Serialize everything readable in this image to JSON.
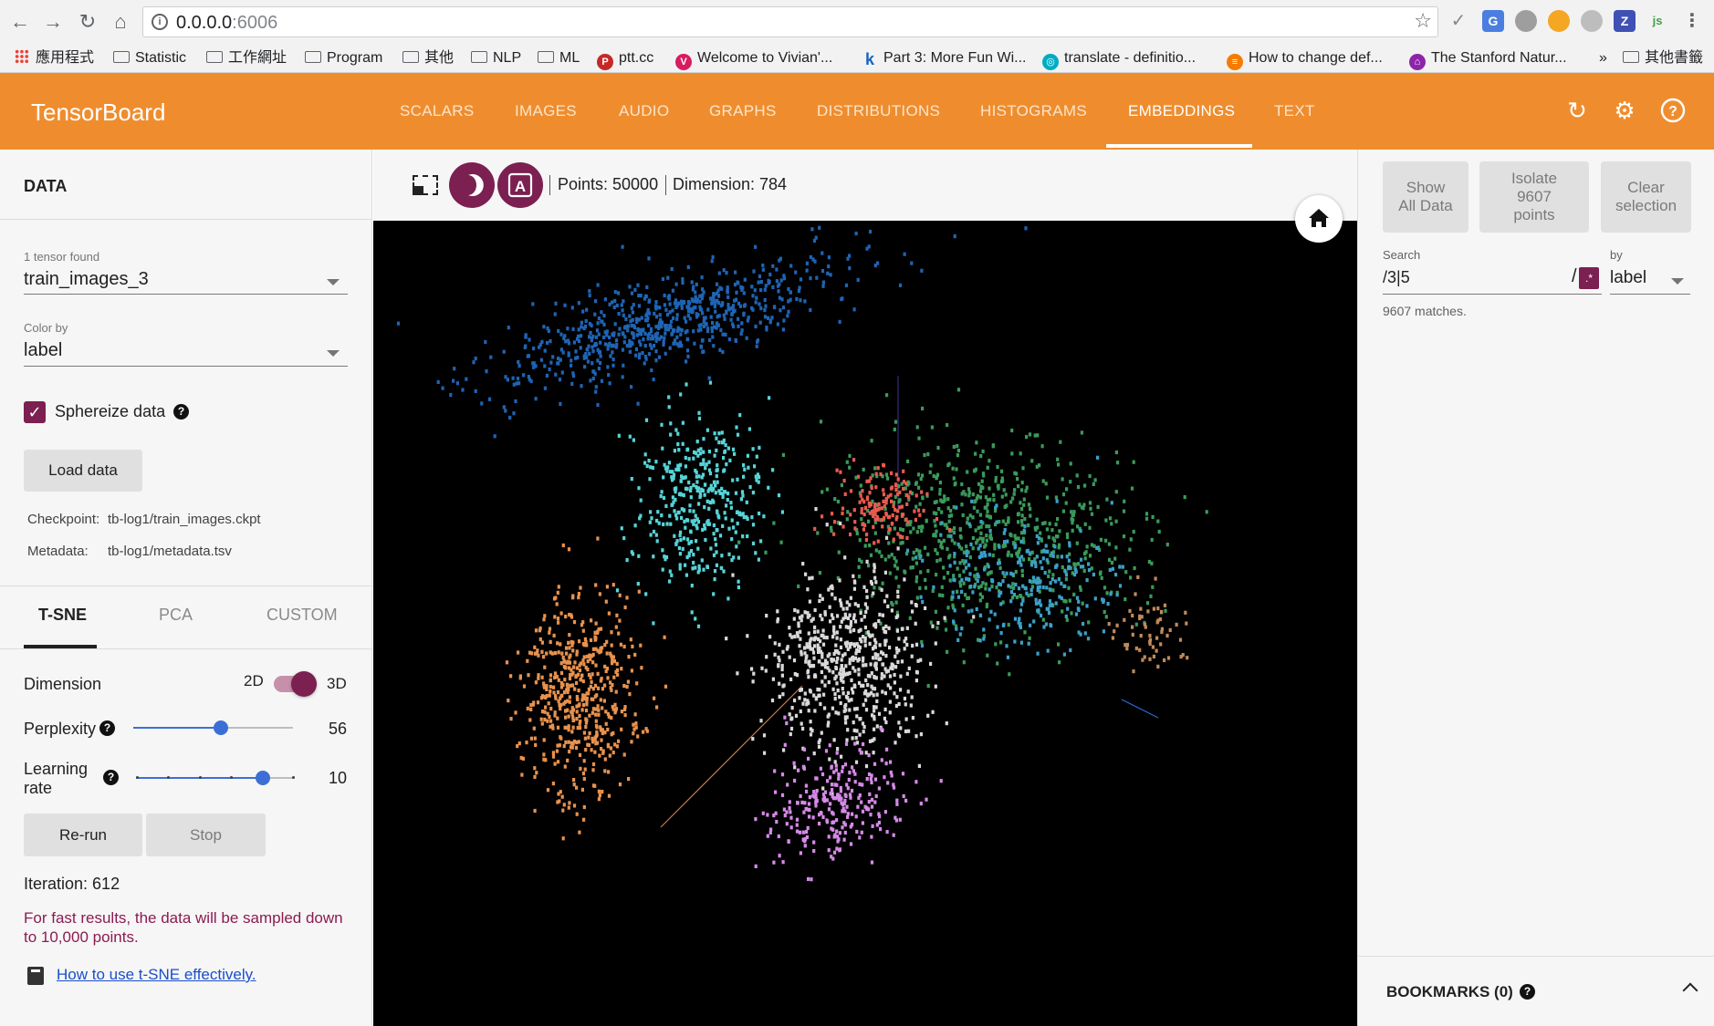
{
  "browser": {
    "url_host": "0.0.0.0",
    "url_port": ":6006",
    "bookmarks": [
      {
        "label": "應用程式",
        "type": "apps"
      },
      {
        "label": "Statistic",
        "type": "folder"
      },
      {
        "label": "工作網址",
        "type": "folder"
      },
      {
        "label": "Program",
        "type": "folder"
      },
      {
        "label": "其他",
        "type": "folder"
      },
      {
        "label": "NLP",
        "type": "folder"
      },
      {
        "label": "ML",
        "type": "folder"
      },
      {
        "label": "ptt.cc",
        "type": "site",
        "icon": "P",
        "color": "#c62828"
      },
      {
        "label": "Welcome to Vivian'...",
        "type": "site",
        "icon": "V",
        "color": "#d81b60"
      },
      {
        "label": "Part 3: More Fun Wi...",
        "type": "site",
        "icon": "k",
        "color": "#1565c0"
      },
      {
        "label": "translate - definitio...",
        "type": "site",
        "icon": "◎",
        "color": "#00acc1"
      },
      {
        "label": "How to change def...",
        "type": "site",
        "icon": "≡",
        "color": "#f57c00"
      },
      {
        "label": "The Stanford Natur...",
        "type": "site",
        "icon": "⌂",
        "color": "#8e24aa"
      },
      {
        "label": "»",
        "type": "overflow"
      },
      {
        "label": "其他書籤",
        "type": "folder"
      }
    ]
  },
  "header": {
    "title": "TensorBoard",
    "tabs": [
      "SCALARS",
      "IMAGES",
      "AUDIO",
      "GRAPHS",
      "DISTRIBUTIONS",
      "HISTOGRAMS",
      "EMBEDDINGS",
      "TEXT"
    ],
    "active_tab": "EMBEDDINGS",
    "icons": [
      "refresh-icon",
      "settings-icon",
      "help-icon"
    ],
    "accent": "#ef8d2e"
  },
  "left": {
    "section_title": "DATA",
    "tensor_found": "1 tensor found",
    "tensor_value": "train_images_3",
    "color_by_label": "Color by",
    "color_by_value": "label",
    "sphereize_label": "Sphereize data",
    "sphereize_checked": true,
    "load_data": "Load data",
    "checkpoint_key": "Checkpoint:",
    "checkpoint_value": "tb-log1/train_images.ckpt",
    "metadata_key": "Metadata:",
    "metadata_value": "tb-log1/metadata.tsv",
    "methods": [
      "T-SNE",
      "PCA",
      "CUSTOM"
    ],
    "active_method": "T-SNE",
    "dimension_label": "Dimension",
    "dim_2d": "2D",
    "dim_3d": "3D",
    "perplexity_label": "Perplexity",
    "perplexity_value": "56",
    "learning_rate_label_1": "Learning",
    "learning_rate_label_2": "rate",
    "learning_rate_value": "10",
    "rerun": "Re-run",
    "stop": "Stop",
    "iteration": "Iteration: 612",
    "sample_note": "For fast results, the data will be sampled down to 10,000 points.",
    "tsne_link": "How to use t-SNE effectively.",
    "brand_color": "#7b2050"
  },
  "toolbar": {
    "points": "Points: 50000",
    "dimension": "Dimension: 784",
    "night_mode_icon": "moon-icon",
    "label_mode_icon": "A"
  },
  "right": {
    "show_all": [
      "Show",
      "All Data"
    ],
    "isolate": [
      "Isolate",
      "9607",
      "points"
    ],
    "clear": [
      "Clear",
      "selection"
    ],
    "search_label": "Search",
    "search_value": "/3|5",
    "regex_slash": "/",
    "regex_btn": ".*",
    "by_label": "by",
    "by_value": "label",
    "matches": "9607 matches.",
    "bookmarks": "BOOKMARKS (0)"
  },
  "embedding_clusters": [
    {
      "color": "#1e64b4",
      "count": 700
    },
    {
      "color": "#56d4d8",
      "count": 380
    },
    {
      "color": "#e8924e",
      "count": 520
    },
    {
      "color": "#3a9a5a",
      "count": 700
    },
    {
      "color": "#e85a4e",
      "count": 140
    },
    {
      "color": "#d9d9d9",
      "count": 600
    },
    {
      "color": "#d68ae8",
      "count": 260
    },
    {
      "color": "#3aa0c8",
      "count": 260
    },
    {
      "color": "#c08a5a",
      "count": 60
    }
  ]
}
